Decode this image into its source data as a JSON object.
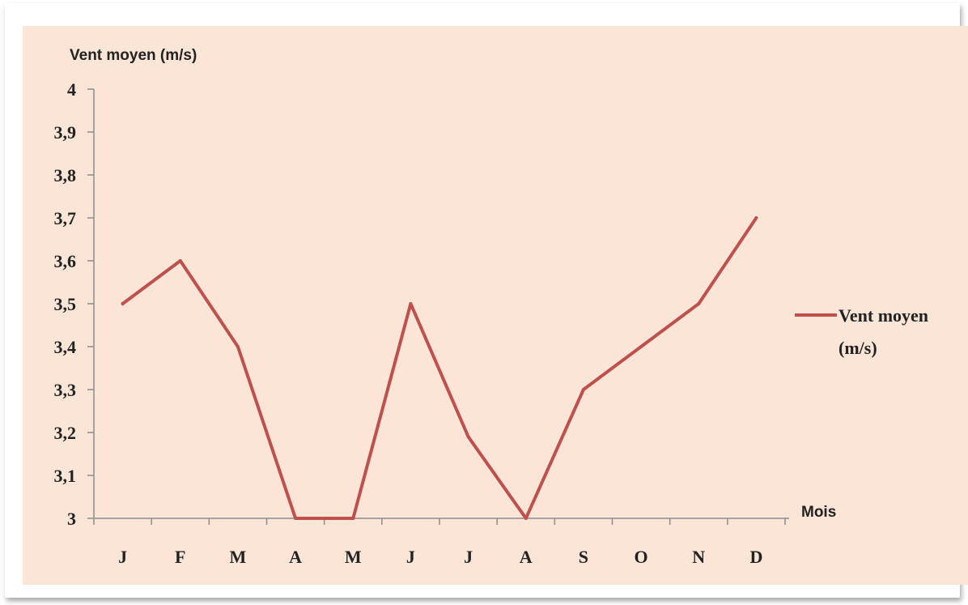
{
  "chart_data": {
    "type": "line",
    "ylabel": "Vent moyen (m/s)",
    "xlabel": "Mois",
    "categories": [
      "J",
      "F",
      "M",
      "A",
      "M",
      "J",
      "J",
      "A",
      "S",
      "O",
      "N",
      "D"
    ],
    "series": [
      {
        "name": "Vent moyen (m/s)",
        "legend_lines": [
          "Vent moyen",
          "(m/s)"
        ],
        "color": "#c0504d",
        "values": [
          3.5,
          3.6,
          3.4,
          3.0,
          3.0,
          3.5,
          3.19,
          3.0,
          3.3,
          3.4,
          3.5,
          3.7
        ]
      }
    ],
    "ylim": [
      3,
      4
    ],
    "yticks": [
      "3",
      "3,1",
      "3,2",
      "3,3",
      "3,4",
      "3,5",
      "3,6",
      "3,7",
      "3,8",
      "3,9",
      "4"
    ],
    "grid": false,
    "legend_position": "right",
    "background": "#fbe5d6"
  }
}
